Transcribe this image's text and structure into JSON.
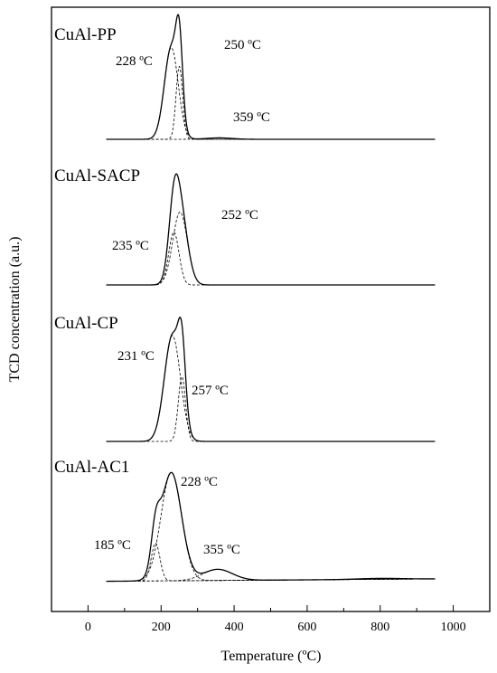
{
  "chart_data": {
    "type": "line",
    "title": "",
    "xlabel": "Temperature (ºC)",
    "ylabel": "TCD concentration (a.u.)",
    "xlim": [
      -100,
      1100
    ],
    "xticks": [
      0,
      200,
      400,
      600,
      800,
      1000
    ],
    "y_ticks_shown": false,
    "grid": false,
    "panels": [
      {
        "name": "CuAl-PP",
        "x_range": [
          50,
          950
        ],
        "baseline_left": 0.0,
        "baseline_right": 0.0,
        "components": [
          {
            "center": 228,
            "height": 0.78,
            "width": 19
          },
          {
            "center": 250,
            "height": 0.62,
            "width": 9
          },
          {
            "center": 359,
            "height": 0.012,
            "width": 35
          }
        ],
        "labels": [
          {
            "text": "228 ºC",
            "x": 228
          },
          {
            "text": "250 ºC",
            "x": 250
          },
          {
            "text": "359 ºC",
            "x": 359
          }
        ]
      },
      {
        "name": "CuAl-SACP",
        "x_range": [
          50,
          950
        ],
        "baseline_left": 0.0,
        "baseline_right": 0.0,
        "components": [
          {
            "center": 235,
            "height": 0.45,
            "width": 14
          },
          {
            "center": 252,
            "height": 0.62,
            "width": 20
          }
        ],
        "labels": [
          {
            "text": "252 ºC",
            "x": 252
          },
          {
            "text": "235 ºC",
            "x": 235
          }
        ]
      },
      {
        "name": "CuAl-CP",
        "x_range": [
          50,
          950
        ],
        "baseline_left": 0.0,
        "baseline_right": 0.0,
        "components": [
          {
            "center": 231,
            "height": 0.9,
            "width": 22
          },
          {
            "center": 257,
            "height": 0.55,
            "width": 10
          }
        ],
        "labels": [
          {
            "text": "231 ºC",
            "x": 231
          },
          {
            "text": "257 ºC",
            "x": 257
          }
        ]
      },
      {
        "name": "CuAl-AC1",
        "x_range": [
          50,
          950
        ],
        "baseline_left": -0.02,
        "baseline_right": 0.0,
        "components": [
          {
            "center": 185,
            "height": 0.32,
            "width": 12
          },
          {
            "center": 228,
            "height": 0.92,
            "width": 28
          },
          {
            "center": 355,
            "height": 0.095,
            "width": 40
          },
          {
            "center": 800,
            "height": 0.008,
            "width": 60
          }
        ],
        "labels": [
          {
            "text": "228 ºC",
            "x": 228
          },
          {
            "text": "185 ºC",
            "x": 185
          },
          {
            "text": "355 ºC",
            "x": 355
          }
        ]
      }
    ]
  }
}
